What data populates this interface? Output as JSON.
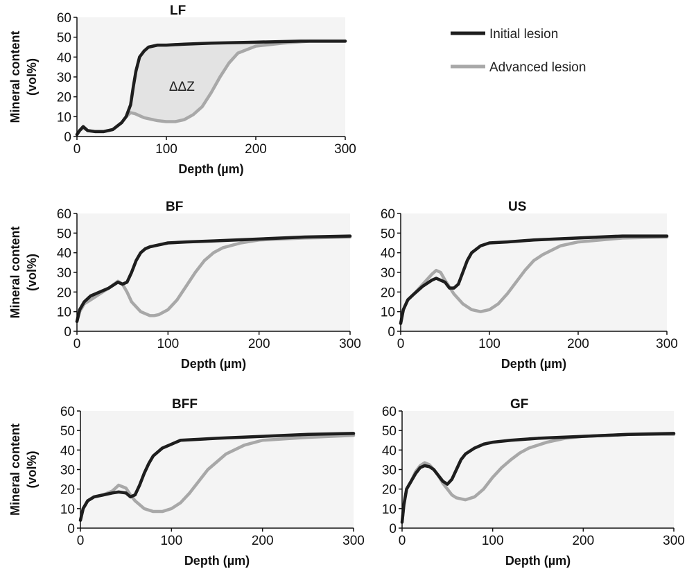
{
  "legend": {
    "position": "top-right",
    "entries": [
      {
        "label": "Initial lesion",
        "color": "#1e1e1e"
      },
      {
        "label": "Advanced lesion",
        "color": "#a8a8a8"
      }
    ]
  },
  "chart_data": [
    {
      "type": "line",
      "title": "LF",
      "xlabel": "Depth (µm)",
      "ylabel": "Mineral content (vol%)",
      "xlim": [
        0,
        300
      ],
      "ylim": [
        0,
        60
      ],
      "xticks": [
        0,
        100,
        200,
        300
      ],
      "yticks": [
        0,
        10,
        20,
        30,
        40,
        50,
        60
      ],
      "annotation": "ΔΔZ",
      "fill_between": true,
      "series": [
        {
          "name": "Initial lesion",
          "color": "#1e1e1e",
          "x": [
            0,
            3,
            7,
            12,
            20,
            30,
            40,
            50,
            55,
            60,
            63,
            66,
            70,
            75,
            80,
            90,
            100,
            120,
            150,
            200,
            250,
            300
          ],
          "y": [
            1,
            3,
            5,
            3,
            2.5,
            2.5,
            3.5,
            7,
            10,
            16,
            25,
            33,
            40,
            43,
            45,
            46,
            46,
            46.5,
            47,
            47.5,
            48,
            48
          ]
        },
        {
          "name": "Advanced lesion",
          "color": "#a8a8a8",
          "x": [
            0,
            3,
            7,
            12,
            20,
            30,
            40,
            50,
            55,
            60,
            65,
            75,
            90,
            100,
            110,
            120,
            130,
            140,
            150,
            160,
            170,
            180,
            200,
            230,
            260,
            300
          ],
          "y": [
            1,
            3,
            4.5,
            3,
            2.5,
            2.5,
            3.5,
            7,
            10,
            12,
            11.5,
            9.5,
            8,
            7.5,
            7.5,
            8.5,
            11,
            15,
            22,
            30,
            37,
            42,
            45.5,
            47,
            48,
            48
          ]
        }
      ]
    },
    {
      "type": "line",
      "title": "BF",
      "xlabel": "Depth (µm)",
      "ylabel": "Mineral content (vol%)",
      "xlim": [
        0,
        300
      ],
      "ylim": [
        0,
        60
      ],
      "xticks": [
        0,
        100,
        200,
        300
      ],
      "yticks": [
        0,
        10,
        20,
        30,
        40,
        50,
        60
      ],
      "series": [
        {
          "name": "Initial lesion",
          "color": "#1e1e1e",
          "x": [
            0,
            3,
            8,
            15,
            25,
            35,
            45,
            50,
            55,
            60,
            65,
            70,
            75,
            80,
            90,
            100,
            120,
            150,
            200,
            250,
            300
          ],
          "y": [
            5,
            11,
            15,
            18,
            20,
            22,
            25,
            24,
            25,
            30,
            36,
            40,
            42,
            43,
            44,
            45,
            45.5,
            46,
            47,
            48,
            48.5
          ]
        },
        {
          "name": "Advanced lesion",
          "color": "#a8a8a8",
          "x": [
            0,
            3,
            8,
            15,
            25,
            35,
            45,
            50,
            55,
            60,
            70,
            80,
            85,
            90,
            100,
            110,
            120,
            130,
            140,
            150,
            160,
            180,
            200,
            250,
            300
          ],
          "y": [
            5,
            10,
            14,
            16,
            19,
            22,
            25.5,
            24,
            20,
            15,
            10,
            8,
            8,
            8.5,
            11,
            16,
            23,
            30,
            36,
            40,
            42.5,
            45,
            46.5,
            47.5,
            48
          ]
        }
      ]
    },
    {
      "type": "line",
      "title": "US",
      "xlabel": "Depth (µm)",
      "ylabel": "Mineral content (vol%)",
      "xlim": [
        0,
        300
      ],
      "ylim": [
        0,
        60
      ],
      "xticks": [
        0,
        100,
        200,
        300
      ],
      "yticks": [
        0,
        10,
        20,
        30,
        40,
        50,
        60
      ],
      "series": [
        {
          "name": "Initial lesion",
          "color": "#1e1e1e",
          "x": [
            0,
            3,
            8,
            15,
            25,
            35,
            40,
            45,
            50,
            55,
            60,
            65,
            70,
            75,
            80,
            90,
            100,
            120,
            150,
            200,
            250,
            300
          ],
          "y": [
            4,
            11,
            16,
            19,
            23,
            26,
            27,
            26,
            25,
            22,
            22,
            24,
            30,
            36,
            40,
            43.5,
            45,
            45.5,
            46.5,
            47.5,
            48.5,
            48.5
          ]
        },
        {
          "name": "Advanced lesion",
          "color": "#a8a8a8",
          "x": [
            0,
            3,
            8,
            15,
            25,
            35,
            40,
            45,
            50,
            60,
            70,
            80,
            90,
            100,
            110,
            120,
            130,
            140,
            150,
            160,
            180,
            200,
            250,
            300
          ],
          "y": [
            4,
            11,
            16,
            19,
            24,
            29,
            31,
            30,
            26,
            19,
            14,
            11,
            10,
            11,
            14,
            19,
            25,
            31,
            36,
            39,
            43.5,
            45.5,
            47.5,
            48
          ]
        }
      ]
    },
    {
      "type": "line",
      "title": "BFF",
      "xlabel": "Depth (µm)",
      "ylabel": "Mineral content (vol%)",
      "xlim": [
        0,
        300
      ],
      "ylim": [
        0,
        60
      ],
      "xticks": [
        0,
        100,
        200,
        300
      ],
      "yticks": [
        0,
        10,
        20,
        30,
        40,
        50,
        60
      ],
      "series": [
        {
          "name": "Initial lesion",
          "color": "#1e1e1e",
          "x": [
            0,
            3,
            8,
            15,
            25,
            35,
            42,
            50,
            55,
            60,
            65,
            70,
            75,
            80,
            90,
            100,
            110,
            130,
            150,
            200,
            250,
            300
          ],
          "y": [
            4,
            10,
            14,
            16,
            17,
            18,
            18.5,
            18,
            16,
            17,
            22,
            28,
            33,
            37,
            41,
            43,
            45,
            45.5,
            46,
            47,
            48,
            48.5
          ]
        },
        {
          "name": "Advanced lesion",
          "color": "#a8a8a8",
          "x": [
            0,
            3,
            8,
            15,
            25,
            35,
            42,
            50,
            55,
            60,
            70,
            80,
            90,
            100,
            110,
            120,
            130,
            140,
            150,
            160,
            180,
            200,
            250,
            300
          ],
          "y": [
            4,
            10,
            14,
            16,
            17,
            19,
            22,
            20.5,
            17,
            14,
            10,
            8.5,
            8.5,
            10,
            13,
            18,
            24,
            30,
            34,
            38,
            42.5,
            45,
            46.5,
            47.5
          ]
        }
      ]
    },
    {
      "type": "line",
      "title": "GF",
      "xlabel": "Depth (µm)",
      "ylabel": "Mineral content (vol%)",
      "xlim": [
        0,
        300
      ],
      "ylim": [
        0,
        60
      ],
      "xticks": [
        0,
        100,
        200,
        300
      ],
      "yticks": [
        0,
        10,
        20,
        30,
        40,
        50,
        60
      ],
      "series": [
        {
          "name": "Initial lesion",
          "color": "#1e1e1e",
          "x": [
            0,
            2,
            5,
            10,
            15,
            20,
            25,
            30,
            35,
            40,
            45,
            50,
            55,
            60,
            65,
            70,
            80,
            90,
            100,
            120,
            150,
            200,
            250,
            300
          ],
          "y": [
            3,
            12,
            20,
            24,
            28,
            31,
            32,
            31.5,
            30,
            27,
            24,
            22.5,
            25,
            30,
            35,
            38,
            41,
            43,
            44,
            45,
            46,
            47,
            48,
            48.5
          ]
        },
        {
          "name": "Advanced lesion",
          "color": "#a8a8a8",
          "x": [
            0,
            2,
            5,
            10,
            15,
            20,
            25,
            30,
            35,
            40,
            45,
            50,
            55,
            60,
            70,
            80,
            90,
            100,
            110,
            120,
            130,
            140,
            160,
            180,
            200,
            250,
            300
          ],
          "y": [
            3,
            12,
            20,
            24,
            29,
            32,
            33.5,
            32.5,
            30,
            27,
            23,
            20,
            17,
            15.5,
            14.5,
            16,
            20,
            26,
            31,
            35,
            38.5,
            41,
            44,
            46,
            47,
            48,
            48
          ]
        }
      ]
    }
  ]
}
